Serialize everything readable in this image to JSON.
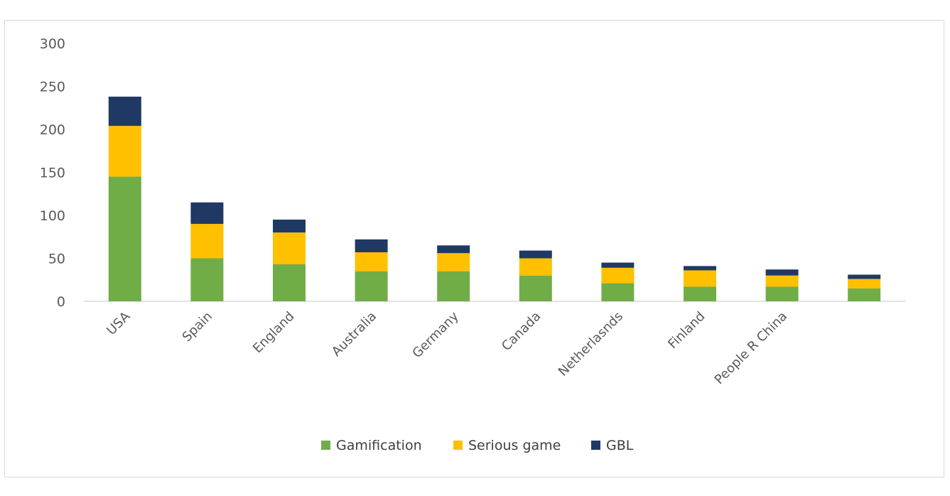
{
  "chart_data": {
    "type": "bar",
    "stacked": true,
    "categories": [
      "USA",
      "Spain",
      "England",
      "Australia",
      "Germany",
      "Canada",
      "Netherlasnds",
      "Finland",
      "People R China",
      ""
    ],
    "series": [
      {
        "name": "Gamification",
        "color": "#70ad47",
        "values": [
          145,
          50,
          43,
          35,
          35,
          30,
          21,
          17,
          17,
          15
        ]
      },
      {
        "name": "Serious game",
        "color": "#ffc000",
        "values": [
          59,
          40,
          37,
          22,
          21,
          20,
          18,
          19,
          13,
          11
        ]
      },
      {
        "name": "GBL",
        "color": "#203864",
        "values": [
          34,
          25,
          15,
          15,
          9,
          9,
          6,
          5,
          7,
          5
        ]
      }
    ],
    "yticks": [
      0,
      50,
      100,
      150,
      200,
      250,
      300
    ],
    "ylim": [
      0,
      300
    ],
    "grid": false,
    "legend_position": "bottom"
  }
}
